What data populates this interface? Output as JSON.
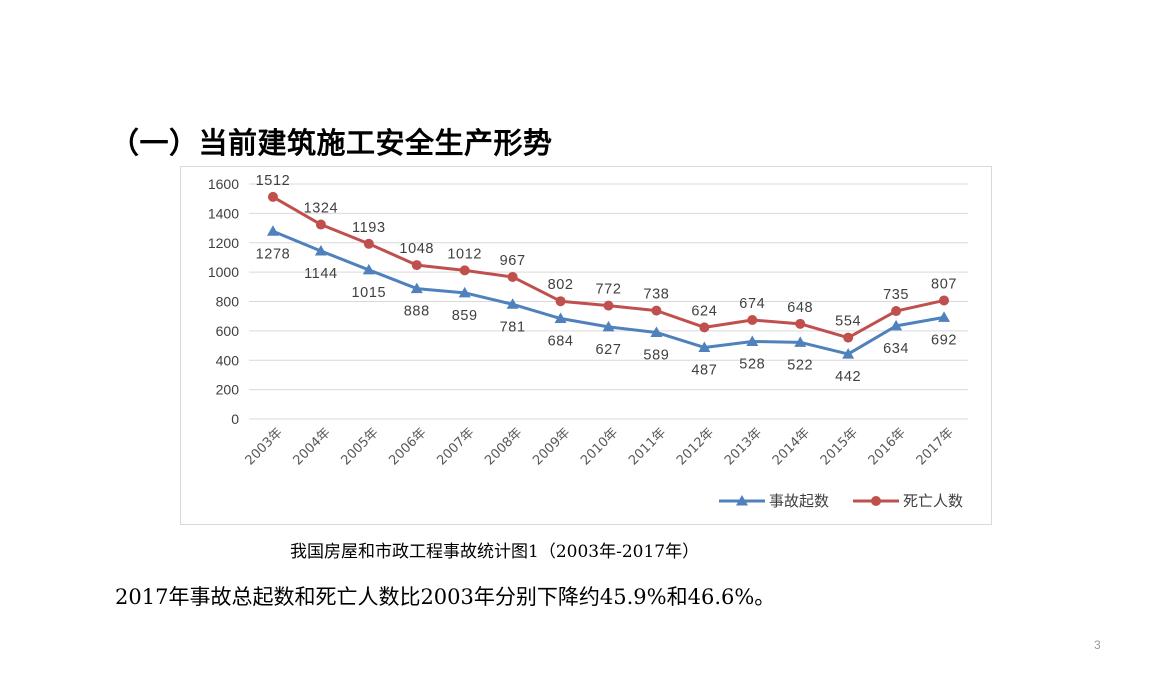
{
  "slide": {
    "heading": "（一）当前建筑施工安全生产形势",
    "caption": "我国房屋和市政工程事故统计图1（2003年-2017年）",
    "summary": "2017年事故总起数和死亡人数比2003年分别下降约45.9%和46.6%。",
    "page_number": "3"
  },
  "chart_data": {
    "type": "line",
    "title": "",
    "xlabel": "",
    "ylabel": "",
    "categories": [
      "2003年",
      "2004年",
      "2005年",
      "2006年",
      "2007年",
      "2008年",
      "2009年",
      "2010年",
      "2011年",
      "2012年",
      "2013年",
      "2014年",
      "2015年",
      "2016年",
      "2017年"
    ],
    "ylim": [
      0,
      1600
    ],
    "yticks": [
      0,
      200,
      400,
      600,
      800,
      1000,
      1200,
      1400,
      1600
    ],
    "grid": true,
    "legend_position": "bottom-right",
    "series": [
      {
        "name": "事故起数",
        "color": "#4f81bd",
        "marker": "triangle",
        "label_position": "below",
        "values": [
          1278,
          1144,
          1015,
          888,
          859,
          781,
          684,
          627,
          589,
          487,
          528,
          522,
          442,
          634,
          692
        ]
      },
      {
        "name": "死亡人数",
        "color": "#c0504d",
        "marker": "circle",
        "label_position": "above",
        "values": [
          1512,
          1324,
          1193,
          1048,
          1012,
          967,
          802,
          772,
          738,
          624,
          674,
          648,
          554,
          735,
          807
        ]
      }
    ]
  }
}
